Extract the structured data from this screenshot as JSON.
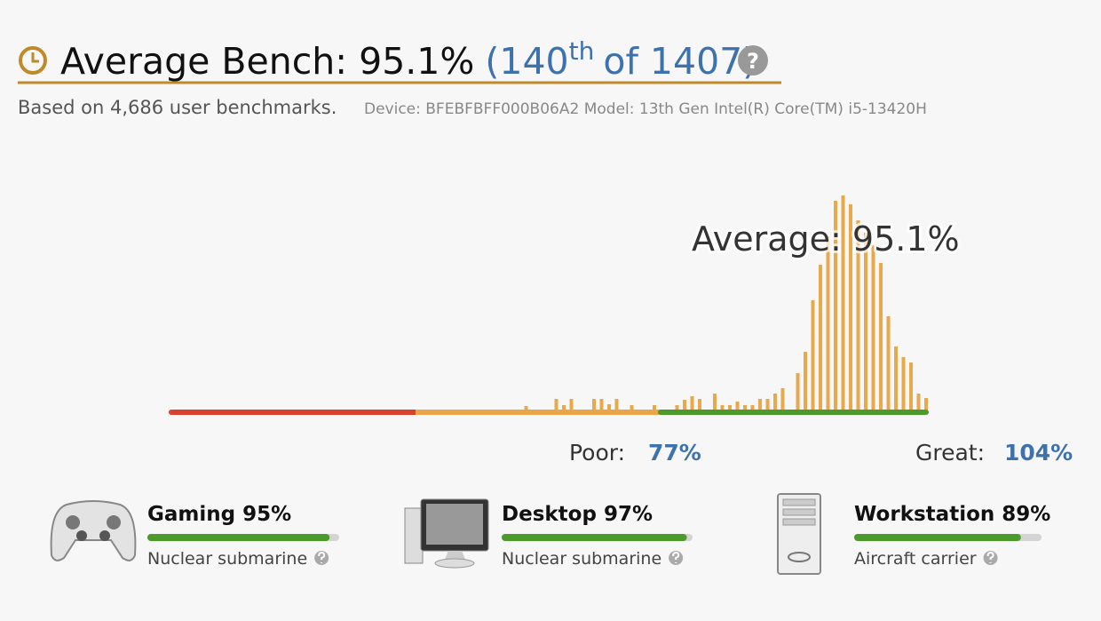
{
  "header": {
    "title": "Average Bench: 95.1%",
    "rank": "(140",
    "rank_suffix": "th",
    "rank_total": "of 1407)",
    "subtitle": "Based on 4,686 user benchmarks.",
    "device": "Device: BFEBFBFF000B06A2 Model: 13th Gen Intel(R) Core(TM) i5-13420H"
  },
  "chart_data": {
    "type": "bar",
    "average_label": "Average: 95.1%",
    "x": [
      47,
      51,
      52,
      53,
      56,
      57,
      58,
      59,
      61,
      64,
      67,
      68,
      69,
      70,
      72,
      73,
      74,
      75,
      76,
      77,
      78,
      79,
      80,
      81,
      83,
      84,
      85,
      86,
      87,
      88,
      89,
      90,
      91,
      92,
      93,
      94,
      95,
      96,
      97,
      98,
      99,
      100
    ],
    "values": [
      5,
      13,
      6,
      13,
      13,
      13,
      7,
      13,
      6,
      6,
      6,
      12,
      16,
      13,
      19,
      6,
      6,
      10,
      6,
      6,
      13,
      13,
      19,
      25,
      42,
      66,
      124,
      164,
      196,
      236,
      242,
      232,
      214,
      200,
      186,
      166,
      106,
      72,
      60,
      54,
      19,
      14
    ],
    "color": "#e8a94c",
    "xlim": [
      0,
      100
    ],
    "ylim": [
      0,
      250
    ],
    "poor_label": "Poor:",
    "poor_value": "77%",
    "great_label": "Great:",
    "great_value": "104%"
  },
  "categories": [
    {
      "title": "Gaming 95%",
      "value": 95,
      "tier": "Nuclear submarine"
    },
    {
      "title": "Desktop 97%",
      "value": 97,
      "tier": "Nuclear submarine"
    },
    {
      "title": "Workstation 89%",
      "value": 89,
      "tier": "Aircraft carrier"
    }
  ]
}
